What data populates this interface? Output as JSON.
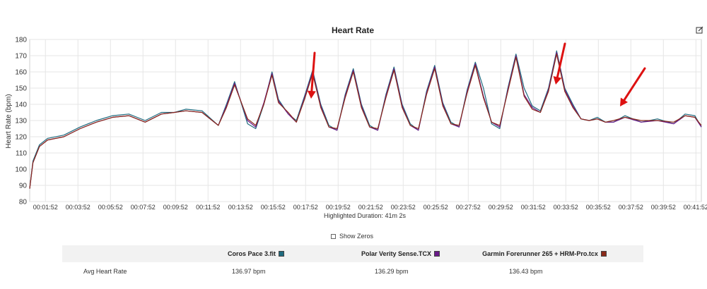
{
  "chart_data": {
    "type": "line",
    "title": "Heart Rate",
    "ylabel": "Heart Rate (bpm)",
    "xlabel": "Highlighted Duration: 41m 2s",
    "ylim": [
      80,
      180
    ],
    "yticks": [
      80,
      90,
      100,
      110,
      120,
      130,
      140,
      150,
      160,
      170,
      180
    ],
    "xlim_minutes": [
      0.9,
      42.2
    ],
    "xticks": [
      "00:01:52",
      "00:03:52",
      "00:05:52",
      "00:07:52",
      "00:09:52",
      "00:11:52",
      "00:13:52",
      "00:15:52",
      "00:17:52",
      "00:19:52",
      "00:21:52",
      "00:23:52",
      "00:25:52",
      "00:27:52",
      "00:29:52",
      "00:31:52",
      "00:33:52",
      "00:35:52",
      "00:37:52",
      "00:39:52",
      "00:41:52"
    ],
    "grid": true,
    "x_minutes": [
      0.9,
      1.1,
      1.5,
      2.0,
      3.0,
      4.0,
      5.0,
      6.0,
      7.0,
      8.0,
      9.0,
      9.8,
      10.5,
      11.5,
      12.5,
      13.0,
      13.5,
      14.3,
      14.8,
      15.3,
      15.8,
      16.2,
      16.8,
      17.3,
      17.8,
      18.3,
      18.8,
      19.3,
      19.8,
      20.3,
      20.8,
      21.3,
      21.8,
      22.3,
      22.8,
      23.3,
      23.8,
      24.3,
      24.8,
      25.3,
      25.8,
      26.3,
      26.8,
      27.3,
      27.8,
      28.3,
      28.8,
      29.3,
      29.8,
      30.3,
      30.8,
      31.3,
      31.8,
      32.3,
      32.8,
      33.3,
      33.8,
      34.3,
      34.8,
      35.3,
      35.8,
      36.3,
      36.8,
      37.5,
      38.5,
      39.5,
      40.5,
      41.2,
      41.8,
      42.2
    ],
    "series": [
      {
        "name": "Coros Pace 3.fit",
        "color": "#1f6b7f",
        "values": [
          88,
          105,
          115,
          119,
          121,
          126,
          130,
          133,
          134,
          130,
          135,
          135,
          137,
          136,
          127,
          140,
          154,
          128,
          125,
          140,
          160,
          143,
          134,
          130,
          145,
          161,
          140,
          127,
          124,
          146,
          162,
          140,
          127,
          124,
          146,
          163,
          140,
          128,
          124,
          148,
          164,
          141,
          129,
          126,
          149,
          166,
          150,
          128,
          125,
          150,
          171,
          150,
          139,
          136,
          150,
          173,
          150,
          140,
          131,
          130,
          132,
          129,
          129,
          133,
          129,
          131,
          128,
          134,
          133,
          126
        ]
      },
      {
        "name": "Polar Verity Sense.TCX",
        "color": "#6a1b8a",
        "values": [
          88,
          104,
          114,
          118,
          120,
          125,
          129,
          132,
          133,
          129,
          134,
          135,
          136,
          135,
          127,
          139,
          153,
          130,
          126,
          141,
          159,
          142,
          134,
          129,
          144,
          160,
          139,
          126,
          124,
          145,
          161,
          139,
          126,
          124,
          145,
          162,
          139,
          127,
          124,
          147,
          163,
          140,
          128,
          126,
          148,
          165,
          145,
          129,
          126,
          149,
          170,
          146,
          138,
          135,
          149,
          172,
          149,
          139,
          131,
          130,
          131,
          129,
          129,
          132,
          129,
          130,
          128,
          133,
          132,
          126
        ]
      },
      {
        "name": "Garmin Forerunner 265 + HRM-Pro.tcx",
        "color": "#8b2a1a",
        "values": [
          88,
          104,
          114,
          118,
          120,
          125,
          129,
          132,
          133,
          129,
          134,
          135,
          136,
          135,
          127,
          138,
          152,
          131,
          127,
          140,
          158,
          141,
          135,
          129,
          143,
          159,
          138,
          126,
          125,
          144,
          160,
          138,
          126,
          125,
          144,
          161,
          138,
          127,
          125,
          146,
          162,
          139,
          128,
          127,
          147,
          164,
          144,
          129,
          127,
          148,
          169,
          145,
          137,
          135,
          148,
          171,
          148,
          138,
          131,
          130,
          131,
          129,
          130,
          132,
          130,
          130,
          129,
          133,
          132,
          127
        ]
      }
    ]
  },
  "ui": {
    "show_zeros_label": "Show Zeros",
    "stats": {
      "row_label": "Avg Heart Rate",
      "devices": [
        {
          "name": "Coros Pace 3.fit",
          "color": "#1f6b7f",
          "avg": "136.97 bpm"
        },
        {
          "name": "Polar Verity Sense.TCX",
          "color": "#6a1b8a",
          "avg": "136.29 bpm"
        },
        {
          "name": "Garmin Forerunner 265 + HRM-Pro.tcx",
          "color": "#8b2a1a",
          "avg": "136.43 bpm"
        }
      ]
    },
    "colors": {
      "arrow": "#dd1111",
      "grid": "#e6e6e6",
      "header_bg": "#f2f2f2"
    },
    "icons": {
      "export": "edit-export-icon"
    }
  }
}
